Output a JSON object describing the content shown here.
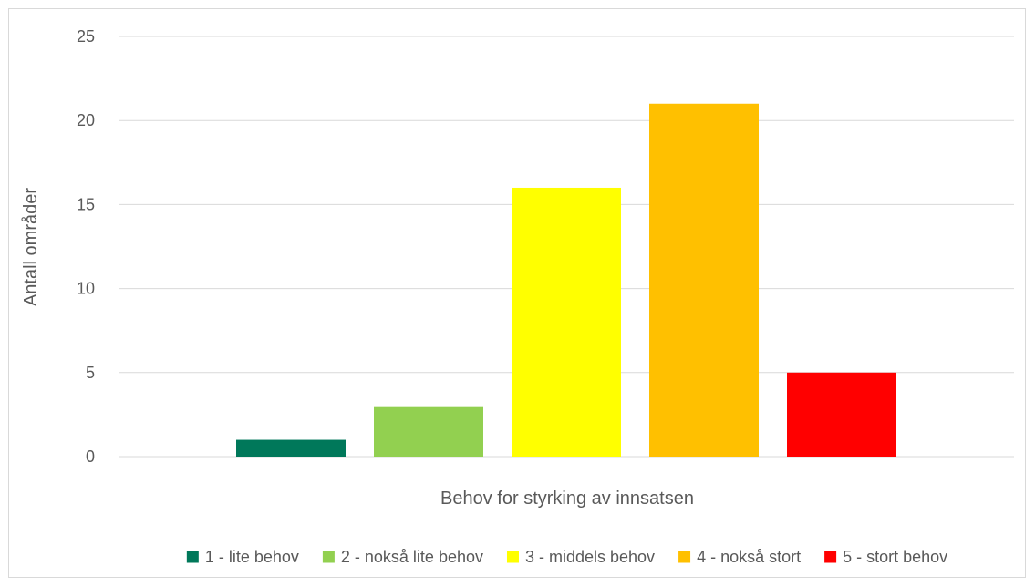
{
  "chart_data": {
    "type": "bar",
    "title": "",
    "xlabel": "Behov for styrking av innsatsen",
    "ylabel": "Antall områder",
    "ylim": [
      0,
      25
    ],
    "yticks": [
      0,
      5,
      10,
      15,
      20,
      25
    ],
    "grid": true,
    "legend_position": "bottom",
    "series": [
      {
        "name": "1 - lite behov",
        "value": 1,
        "color": "#00785A"
      },
      {
        "name": "2 - nokså lite behov",
        "value": 3,
        "color": "#92D050"
      },
      {
        "name": "3 - middels behov",
        "value": 16,
        "color": "#FFFF00"
      },
      {
        "name": "4 - nokså stort",
        "value": 21,
        "color": "#FFC000"
      },
      {
        "name": "5 - stort behov",
        "value": 5,
        "color": "#FF0000"
      }
    ]
  }
}
